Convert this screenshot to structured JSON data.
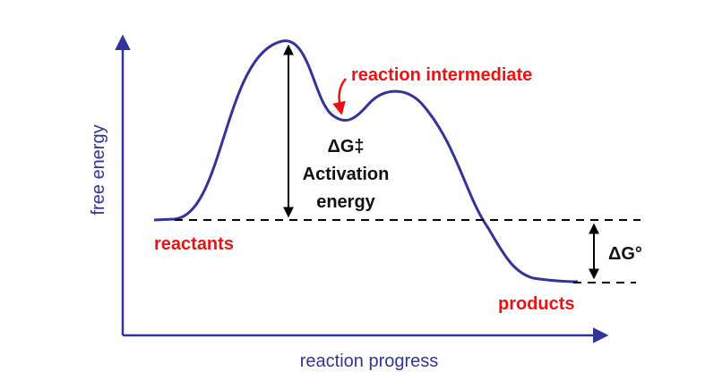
{
  "axes": {
    "y_label": "free energy",
    "x_label": "reaction progress"
  },
  "annotations": {
    "intermediate": "reaction intermediate",
    "activation_symbol": "ΔG‡",
    "activation_line1": "Activation",
    "activation_line2": "energy",
    "reactants": "reactants",
    "products": "products",
    "reaction_symbol": "ΔG°"
  }
}
